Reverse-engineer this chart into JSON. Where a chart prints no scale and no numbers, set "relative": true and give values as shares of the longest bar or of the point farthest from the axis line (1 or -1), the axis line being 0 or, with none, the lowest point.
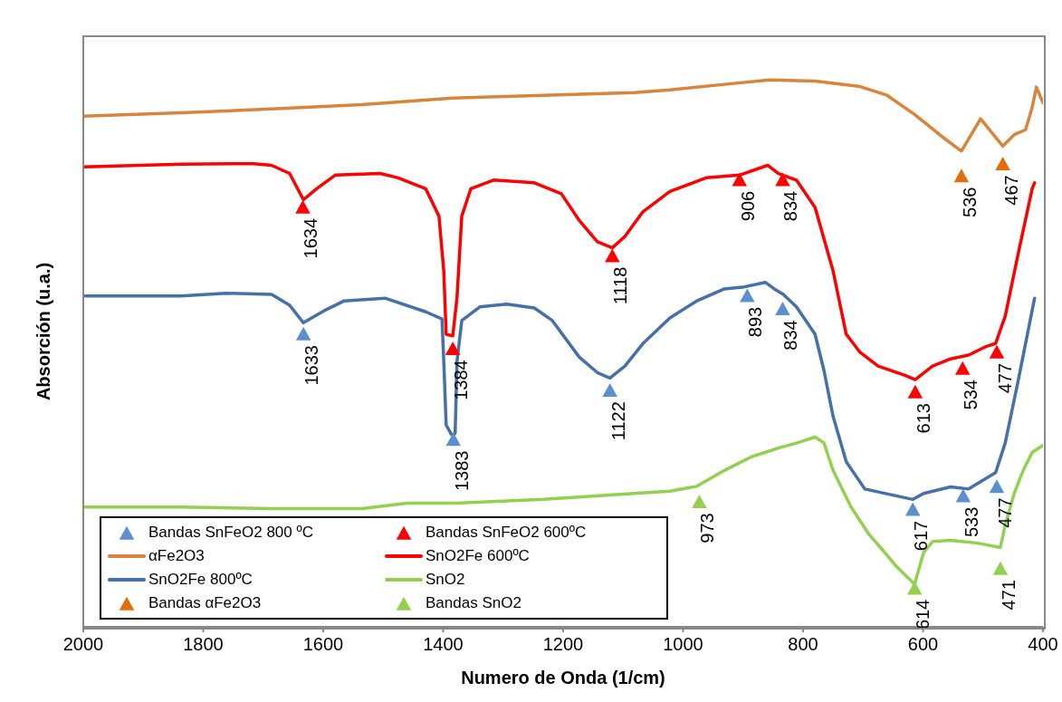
{
  "chart_data": {
    "type": "line",
    "relative": true,
    "xlabel": "Numero de Onda (1/cm)",
    "ylabel": "Absorción (u.a.)",
    "xlim": [
      2000,
      400
    ],
    "xticks": [
      2000,
      1800,
      1600,
      1400,
      1200,
      1000,
      800,
      600,
      400
    ],
    "legend": "bottom left",
    "series": [
      {
        "name": "Bandas SnFeO2 800 ºC",
        "type": "scatter",
        "marker": "triangle",
        "color": "#5b8fd0",
        "x": [
          1633,
          1383,
          1122,
          893,
          834,
          617,
          533,
          477
        ],
        "values": [
          0.535,
          0.342,
          0.432,
          0.605,
          0.581,
          0.214,
          0.239,
          0.256
        ]
      },
      {
        "name": "Bandas SnFeO2 600ºC",
        "type": "scatter",
        "marker": "triangle",
        "color": "#ff0000",
        "x": [
          1634,
          1384,
          1118,
          906,
          834,
          613,
          534,
          477
        ],
        "values": [
          0.767,
          0.508,
          0.678,
          0.817,
          0.817,
          0.429,
          0.472,
          0.502
        ]
      },
      {
        "name": "αFe2O3",
        "color": "#d9843b",
        "x": [
          2000,
          1837,
          1686,
          1535,
          1384,
          1233,
          1082,
          1022,
          931,
          856,
          780,
          705,
          660,
          614,
          569,
          536,
          504,
          467,
          448,
          429,
          418,
          411,
          400
        ],
        "values": [
          0.934,
          0.94,
          0.947,
          0.955,
          0.967,
          0.972,
          0.977,
          0.982,
          0.992,
          1,
          0.998,
          0.988,
          0.972,
          0.937,
          0.897,
          0.87,
          0.929,
          0.879,
          0.9,
          0.909,
          0.95,
          0.987,
          0.958
        ]
      },
      {
        "name": "SnO2Fe 600ºC",
        "color": "#ff0000",
        "x": [
          2000,
          1837,
          1716,
          1686,
          1656,
          1633,
          1611,
          1580,
          1505,
          1475,
          1429,
          1407,
          1399,
          1395,
          1384,
          1377,
          1369,
          1354,
          1316,
          1248,
          1203,
          1173,
          1143,
          1118,
          1097,
          1067,
          1022,
          962,
          906,
          859,
          841,
          811,
          780,
          750,
          728,
          705,
          675,
          630,
          613,
          584,
          554,
          524,
          494,
          479,
          463,
          441,
          418,
          414
        ],
        "values": [
          0.841,
          0.846,
          0.847,
          0.844,
          0.829,
          0.781,
          0.801,
          0.826,
          0.829,
          0.821,
          0.801,
          0.751,
          0.651,
          0.535,
          0.532,
          0.601,
          0.751,
          0.801,
          0.817,
          0.812,
          0.792,
          0.743,
          0.704,
          0.693,
          0.714,
          0.759,
          0.796,
          0.821,
          0.826,
          0.844,
          0.829,
          0.817,
          0.767,
          0.651,
          0.535,
          0.502,
          0.477,
          0.46,
          0.452,
          0.477,
          0.49,
          0.497,
          0.513,
          0.518,
          0.568,
          0.684,
          0.801,
          0.812
        ]
      },
      {
        "name": "SnO2Fe 800ºC",
        "color": "#4570a8",
        "x": [
          2000,
          1837,
          1762,
          1686,
          1656,
          1633,
          1595,
          1565,
          1497,
          1429,
          1402,
          1399,
          1395,
          1387,
          1383,
          1380,
          1377,
          1369,
          1339,
          1294,
          1248,
          1218,
          1173,
          1143,
          1122,
          1097,
          1067,
          1022,
          977,
          931,
          901,
          863,
          848,
          833,
          811,
          780,
          765,
          750,
          728,
          697,
          617,
          599,
          554,
          524,
          479,
          463,
          441,
          414
        ],
        "values": [
          0.605,
          0.605,
          0.61,
          0.608,
          0.588,
          0.556,
          0.58,
          0.596,
          0.601,
          0.576,
          0.563,
          0.485,
          0.369,
          0.353,
          0.349,
          0.355,
          0.485,
          0.56,
          0.585,
          0.59,
          0.583,
          0.56,
          0.493,
          0.465,
          0.455,
          0.477,
          0.518,
          0.565,
          0.596,
          0.618,
          0.621,
          0.63,
          0.618,
          0.608,
          0.585,
          0.535,
          0.468,
          0.385,
          0.302,
          0.252,
          0.233,
          0.244,
          0.256,
          0.252,
          0.282,
          0.336,
          0.452,
          0.601
        ]
      },
      {
        "name": "SnO2",
        "color": "#92d050",
        "x": [
          2000,
          1837,
          1686,
          1535,
          1460,
          1384,
          1233,
          1082,
          1022,
          977,
          931,
          886,
          841,
          811,
          780,
          765,
          750,
          720,
          690,
          667,
          645,
          614,
          599,
          584,
          554,
          509,
          471,
          463,
          448,
          433,
          418,
          400
        ],
        "values": [
          0.219,
          0.219,
          0.216,
          0.216,
          0.226,
          0.226,
          0.233,
          0.244,
          0.248,
          0.257,
          0.286,
          0.311,
          0.327,
          0.336,
          0.347,
          0.336,
          0.286,
          0.219,
          0.169,
          0.14,
          0.111,
          0.078,
          0.136,
          0.156,
          0.158,
          0.153,
          0.145,
          0.186,
          0.244,
          0.286,
          0.319,
          0.332
        ]
      },
      {
        "name": "Bandas αFe2O3",
        "type": "scatter",
        "marker": "triangle",
        "color": "#e46c0a",
        "x": [
          536,
          467
        ],
        "values": [
          0.824,
          0.846
        ]
      },
      {
        "name": "Bandas SnO2",
        "type": "scatter",
        "marker": "triangle",
        "color": "#92d050",
        "x": [
          973,
          614,
          471
        ],
        "values": [
          0.228,
          0.07,
          0.106
        ]
      }
    ],
    "annotations": [
      {
        "text": "1633",
        "x": 1633,
        "y": 0.535
      },
      {
        "text": "1383",
        "x": 1383,
        "y": 0.342
      },
      {
        "text": "1122",
        "x": 1122,
        "y": 0.432
      },
      {
        "text": "893",
        "x": 893,
        "y": 0.605
      },
      {
        "text": "834",
        "x": 834,
        "y": 0.581
      },
      {
        "text": "617",
        "x": 617,
        "y": 0.214
      },
      {
        "text": "533",
        "x": 533,
        "y": 0.239
      },
      {
        "text": "477",
        "x": 477,
        "y": 0.256
      },
      {
        "text": "1634",
        "x": 1634,
        "y": 0.767
      },
      {
        "text": "1384",
        "x": 1384,
        "y": 0.508
      },
      {
        "text": "1118",
        "x": 1118,
        "y": 0.678
      },
      {
        "text": "906",
        "x": 906,
        "y": 0.817
      },
      {
        "text": "834",
        "x": 834,
        "y": 0.817
      },
      {
        "text": "613",
        "x": 613,
        "y": 0.429
      },
      {
        "text": "534",
        "x": 534,
        "y": 0.472
      },
      {
        "text": "477",
        "x": 477,
        "y": 0.502
      },
      {
        "text": "536",
        "x": 536,
        "y": 0.824
      },
      {
        "text": "467",
        "x": 467,
        "y": 0.846
      },
      {
        "text": "973",
        "x": 973,
        "y": 0.228
      },
      {
        "text": "614",
        "x": 614,
        "y": 0.07
      },
      {
        "text": "471",
        "x": 471,
        "y": 0.106
      }
    ]
  }
}
